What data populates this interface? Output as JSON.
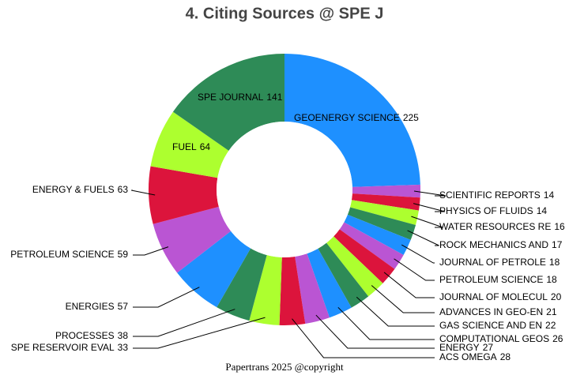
{
  "chart_data": {
    "type": "donut",
    "title": "4. Citing Sources @ SPE J",
    "footer": "Papertrans 2025 @copyright",
    "categories": [
      "GEOENERGY SCIENCE",
      "SCIENTIFIC REPORTS",
      "PHYSICS OF FLUIDS",
      "WATER RESOURCES RE",
      "ROCK MECHANICS AND",
      "JOURNAL OF PETROLE",
      "PETROLEUM SCIENCE",
      "JOURNAL OF MOLECUL",
      "ADVANCES IN GEO-EN",
      "GAS SCIENCE AND EN",
      "COMPUTATIONAL GEOS",
      "ENERGY",
      "ACS OMEGA",
      "SPE RESERVOIR EVAL",
      "PROCESSES",
      "ENERGIES",
      "PETROLEUM SCIENCE",
      "ENERGY & FUELS",
      "FUEL",
      "SPE JOURNAL"
    ],
    "values": [
      225,
      14,
      14,
      16,
      17,
      18,
      18,
      20,
      21,
      22,
      26,
      27,
      28,
      33,
      38,
      57,
      59,
      63,
      64,
      141
    ],
    "colors": [
      "#1e90ff",
      "#ba55d3",
      "#dc143c",
      "#adff2f",
      "#2e8b57",
      "#1e90ff",
      "#ba55d3",
      "#dc143c",
      "#adff2f",
      "#2e8b57",
      "#1e90ff",
      "#ba55d3",
      "#dc143c",
      "#adff2f",
      "#2e8b57",
      "#1e90ff",
      "#ba55d3",
      "#dc143c",
      "#adff2f",
      "#2e8b57"
    ]
  }
}
